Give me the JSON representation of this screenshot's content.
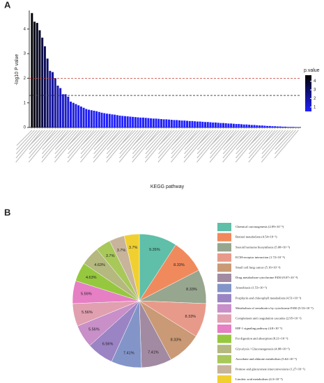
{
  "chart_data": [
    {
      "type": "bar",
      "panel_label": "A",
      "y_label": "-log10 P value",
      "x_label": "KEGG pathway",
      "values": [
        4.65,
        4.3,
        4.25,
        3.95,
        3.65,
        3.3,
        2.8,
        2.3,
        2.25,
        2.0,
        1.7,
        1.6,
        1.35,
        1.35,
        1.25,
        1.05,
        1.0,
        0.95,
        0.9,
        0.85,
        0.8,
        0.75,
        0.72,
        0.7,
        0.68,
        0.66,
        0.63,
        0.6,
        0.58,
        0.56,
        0.55,
        0.53,
        0.52,
        0.5,
        0.48,
        0.47,
        0.46,
        0.45,
        0.44,
        0.43,
        0.42,
        0.41,
        0.4,
        0.4,
        0.39,
        0.38,
        0.37,
        0.36,
        0.36,
        0.35,
        0.34,
        0.33,
        0.33,
        0.32,
        0.31,
        0.3,
        0.3,
        0.29,
        0.28,
        0.28,
        0.27,
        0.26,
        0.26,
        0.25,
        0.24,
        0.24,
        0.23,
        0.22,
        0.22,
        0.21,
        0.2,
        0.2,
        0.19,
        0.18,
        0.18,
        0.17,
        0.16,
        0.16,
        0.15,
        0.14,
        0.14,
        0.13,
        0.12,
        0.12,
        0.11,
        0.1,
        0.1,
        0.09,
        0.08,
        0.08,
        0.07,
        0.06,
        0.06,
        0.05,
        0.05,
        0.04,
        0.04,
        0.03,
        0.03,
        0.02,
        0.02,
        0.02,
        0.01,
        0.01
      ],
      "ylim": [
        0,
        4.7
      ],
      "yticks": [
        0,
        1,
        2,
        3,
        4
      ],
      "colorscale": [
        "#2020ff",
        "#000000"
      ],
      "colorbar_title": "p.value",
      "clim": [
        0.5,
        4.7
      ],
      "cticks": [
        1,
        2,
        3,
        4
      ],
      "hlines": [
        {
          "value": 2,
          "color": "#c0392b"
        },
        {
          "value": 1.3,
          "color": "#333333"
        }
      ]
    },
    {
      "type": "pie",
      "panel_label": "B",
      "categories": [
        "Chemical carcinogenesis (2.09×10⁻⁵)",
        "Retinol metabolism (4.54×10⁻⁵)",
        "Steroid hormone biosynthesis (5.08×10⁻⁵)",
        "ECM-receptor interaction (1.72×10⁻⁴)",
        "Small cell lung cancer (5.16×10⁻⁴)",
        "Drug metabolism-cytochrome P450 (9.07×10⁻⁴)",
        "Amoebiasis (1.53×10⁻³)",
        "Porphyrin and chlorophyll metabolism (4.51×10⁻³)",
        "Metabolism of xenobiotics by cytochrome P450 (5.53×10⁻³)",
        "Complement and coagulation cascades (2.95×10⁻³)",
        "HIF-1 signaling pathway (4.8×10⁻³)",
        "Fat digestion and absorption (8.21×10⁻³)",
        "Glycolysis / Gluconeogenesis (4.08×10⁻²)",
        "Ascorbate and aldarate metabolism (5.62×10⁻²)",
        "Pentose and glucuronate interconversions (1.27×10⁻²)",
        "Linoleic acid metabolism (4.3×10⁻²)"
      ],
      "values": [
        9.26,
        8.33,
        8.33,
        8.33,
        8.33,
        7.41,
        7.41,
        6.56,
        5.56,
        5.56,
        5.56,
        4.63,
        4.63,
        3.7,
        3.7,
        3.7
      ],
      "value_labels": [
        "9.26%",
        "8.33%",
        "8.33%",
        "8.33%",
        "8.33%",
        "7.41%",
        "7.41%",
        "6.56%",
        "5.56%",
        "5.56%",
        "5.56%",
        "4.63%",
        "4.63%",
        "3.7%",
        "3.7%",
        "3.7%"
      ],
      "colors": [
        "#5fbfa8",
        "#f08a5d",
        "#97a68e",
        "#e89a8a",
        "#c99a75",
        "#a28aa2",
        "#8395c8",
        "#9b84c4",
        "#c88fc8",
        "#e0a0b0",
        "#e67fc4",
        "#96c83f",
        "#b5b87f",
        "#a8c85a",
        "#c8b49a",
        "#f0d030"
      ]
    }
  ]
}
